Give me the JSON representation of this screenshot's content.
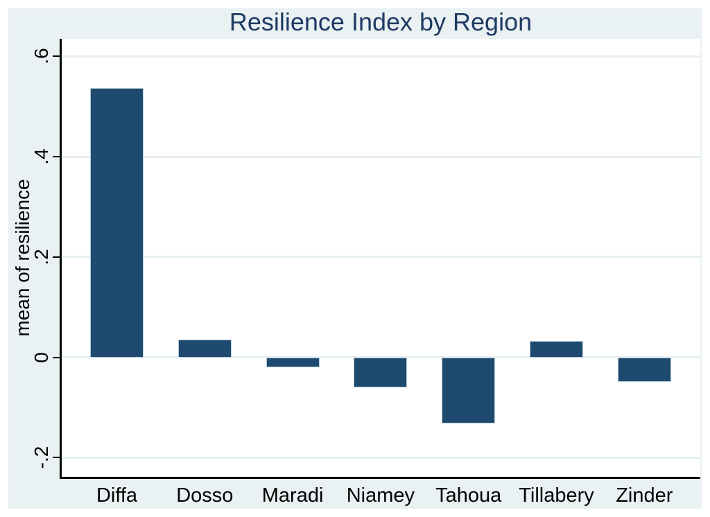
{
  "chart_data": {
    "type": "bar",
    "title": "Resilience Index by Region",
    "xlabel": "",
    "ylabel": "mean of resilience",
    "categories": [
      "Diffa",
      "Dosso",
      "Maradi",
      "Niamey",
      "Tahoua",
      "Tillabery",
      "Zinder"
    ],
    "values": [
      0.537,
      0.036,
      -0.02,
      -0.06,
      -0.131,
      0.033,
      -0.049
    ],
    "ylim": [
      -0.238,
      0.635
    ],
    "yticks": [
      {
        "value": 0.6,
        "label": ".6"
      },
      {
        "value": 0.4,
        "label": ".4"
      },
      {
        "value": 0.2,
        "label": ".2"
      },
      {
        "value": 0.0,
        "label": "0"
      },
      {
        "value": -0.2,
        "label": "-.2"
      }
    ],
    "grid": true,
    "legend": "none",
    "colors": {
      "bar_fill": "#1d4a6e",
      "bar_outline": "#b9cdda",
      "graph_background": "#eaf1f3",
      "plot_background": "#ffffff",
      "title_color": "#1f3a63",
      "gridline_color": "#e6eff3",
      "axis_color": "#000000",
      "text_color": "#000000"
    }
  }
}
